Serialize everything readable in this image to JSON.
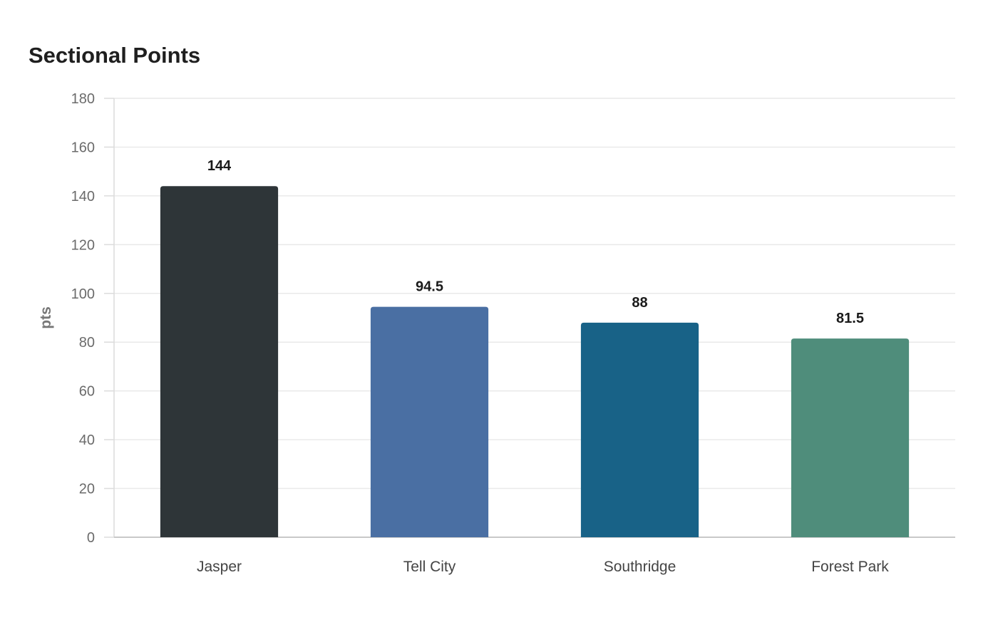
{
  "chart_data": {
    "type": "bar",
    "title": "Sectional Points",
    "xlabel": "",
    "ylabel": "pts",
    "categories": [
      "Jasper",
      "Tell City",
      "Southridge",
      "Forest Park"
    ],
    "values": [
      144,
      94.5,
      88,
      81.5
    ],
    "value_labels": [
      "144",
      "94.5",
      "88",
      "81.5"
    ],
    "colors": [
      "#2e3538",
      "#4a6fa3",
      "#186287",
      "#4f8d7b"
    ],
    "ylim": [
      0,
      180
    ],
    "yticks": [
      0,
      20,
      40,
      60,
      80,
      100,
      120,
      140,
      160,
      180
    ],
    "grid": true,
    "legend": "none"
  }
}
